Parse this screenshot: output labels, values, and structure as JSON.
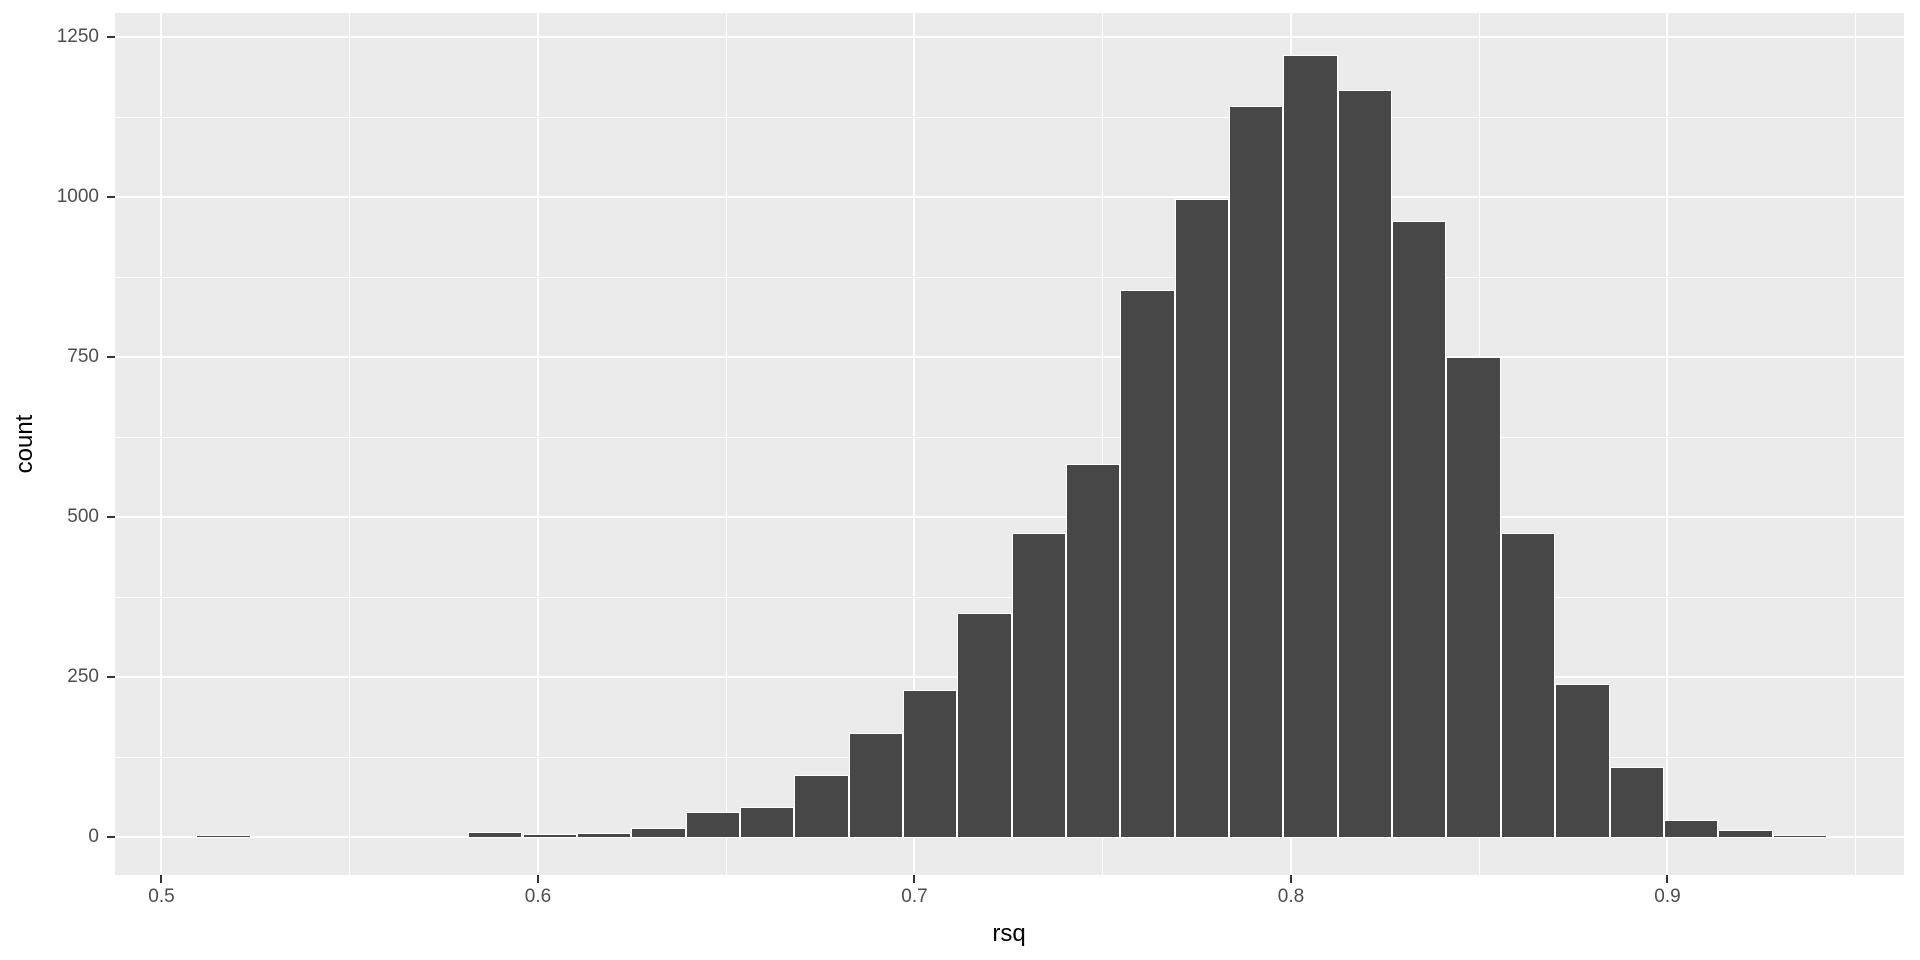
{
  "chart_data": {
    "type": "bar",
    "subtype": "histogram",
    "title": "",
    "xlabel": "rsq",
    "ylabel": "count",
    "bins": {
      "start": 0.50927,
      "width": 0.014436,
      "count": 30
    },
    "counts": [
      1,
      0,
      0,
      0,
      0,
      8,
      5,
      7,
      15,
      40,
      48,
      98,
      163,
      230,
      350,
      475,
      583,
      855,
      997,
      1142,
      1222,
      1168,
      963,
      750,
      476,
      240,
      110,
      27,
      11,
      2
    ],
    "x_axis": {
      "major_ticks": [
        0.5,
        0.6,
        0.7,
        0.8,
        0.9
      ],
      "tick_labels": [
        "0.5",
        "0.6",
        "0.7",
        "0.8",
        "0.9"
      ],
      "minor_ticks": [
        0.55,
        0.65,
        0.75,
        0.85,
        0.95
      ],
      "range": [
        0.48765,
        0.96282
      ]
    },
    "y_axis": {
      "major_ticks": [
        0,
        250,
        500,
        750,
        1000,
        1250
      ],
      "tick_labels": [
        "0",
        "250",
        "500",
        "750",
        "1000",
        "1250"
      ],
      "minor_ticks": [
        125,
        375,
        625,
        875,
        1125
      ],
      "range": [
        -58.6,
        1287.6
      ]
    },
    "grid": true,
    "legend": "none",
    "colors": {
      "bar_fill": "#474747",
      "bar_outline": "#FFFFFF",
      "panel_background": "#EBEBEB",
      "gridline": "#FFFFFF",
      "outer_background": "#FFFFFF",
      "tick_label": "#4D4D4D",
      "tick_mark": "#333333",
      "axis_title": "#000000"
    }
  }
}
